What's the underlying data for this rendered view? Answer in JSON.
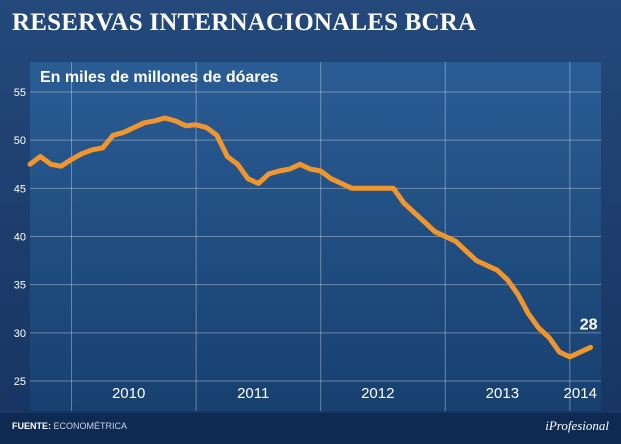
{
  "title": "RESERVAS INTERNACIONALES BCRA",
  "source": {
    "label": "FUENTE:",
    "value": "ECONOMÉTRICA"
  },
  "brand": "iProfesional",
  "colors": {
    "background": "#1d3f6e",
    "plot": "#1c4a80",
    "line": "#f0962e",
    "grid": "#ffffff"
  },
  "chart_data": {
    "type": "line",
    "title": "En miles de millones de dóares",
    "xlabel": "",
    "ylabel": "",
    "x_ticks": [
      "2010",
      "2011",
      "2012",
      "2013",
      "2014"
    ],
    "xlim": [
      "2009-09",
      "2014-04"
    ],
    "ylim": [
      25,
      55
    ],
    "y_ticks": [
      25,
      30,
      35,
      40,
      45,
      50,
      55
    ],
    "grid": true,
    "end_label": "28",
    "series": [
      {
        "x": [
          "2009-09",
          "2009-10",
          "2009-11",
          "2009-12",
          "2010-01",
          "2010-02",
          "2010-03",
          "2010-04",
          "2010-05",
          "2010-06",
          "2010-07",
          "2010-08",
          "2010-09",
          "2010-10",
          "2010-11",
          "2010-12",
          "2011-01",
          "2011-02",
          "2011-03",
          "2011-04",
          "2011-05",
          "2011-06",
          "2011-07",
          "2011-08",
          "2011-09",
          "2011-10",
          "2011-11",
          "2011-12",
          "2012-01",
          "2012-02",
          "2012-03",
          "2012-04",
          "2012-05",
          "2012-06",
          "2012-07",
          "2012-08",
          "2012-09",
          "2012-10",
          "2012-11",
          "2012-12",
          "2013-01",
          "2013-02",
          "2013-03",
          "2013-04",
          "2013-05",
          "2013-06",
          "2013-07",
          "2013-08",
          "2013-09",
          "2013-10",
          "2013-11",
          "2013-12",
          "2014-01",
          "2014-02",
          "2014-03"
        ],
        "y": [
          47.5,
          48.3,
          47.5,
          47.3,
          48.0,
          48.6,
          49.0,
          49.2,
          50.5,
          50.8,
          51.3,
          51.8,
          52.0,
          52.3,
          52.0,
          51.5,
          51.6,
          51.3,
          50.5,
          48.3,
          47.5,
          46.0,
          45.5,
          46.5,
          46.8,
          47.0,
          47.5,
          47.0,
          46.8,
          46.0,
          45.5,
          45.0,
          45.0,
          45.0,
          45.0,
          45.0,
          43.5,
          42.5,
          41.5,
          40.5,
          40.0,
          39.5,
          38.5,
          37.5,
          37.0,
          36.5,
          35.5,
          34.0,
          32.0,
          30.5,
          29.5,
          28.0,
          27.5,
          28.0,
          28.5
        ]
      }
    ]
  }
}
